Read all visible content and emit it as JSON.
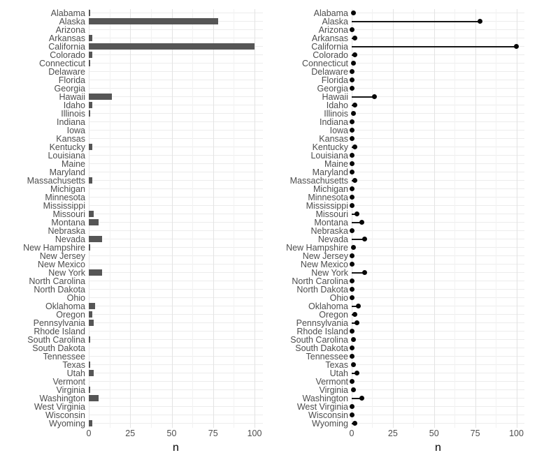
{
  "figure": {
    "background": "#ffffff",
    "axis_text_color": "#4d4d4d",
    "axis_title_color": "#000000",
    "grid_major_color": "#e3e3e3",
    "grid_minor_color": "#f2f2f2"
  },
  "chart_data": [
    {
      "type": "bar",
      "orientation": "horizontal",
      "title": "",
      "xlabel": "n",
      "ylabel": "",
      "xlim": [
        0,
        105
      ],
      "xticks": [
        0,
        25,
        50,
        75,
        100
      ],
      "xtick_labels": [
        "0",
        "25",
        "50",
        "75",
        "100"
      ],
      "grid": true,
      "legend": false,
      "bar_color": "#565656",
      "categories": [
        "Alabama",
        "Alaska",
        "Arizona",
        "Arkansas",
        "California",
        "Colorado",
        "Connecticut",
        "Delaware",
        "Florida",
        "Georgia",
        "Hawaii",
        "Idaho",
        "Illinois",
        "Indiana",
        "Iowa",
        "Kansas",
        "Kentucky",
        "Louisiana",
        "Maine",
        "Maryland",
        "Massachusetts",
        "Michigan",
        "Minnesota",
        "Mississippi",
        "Missouri",
        "Montana",
        "Nebraska",
        "Nevada",
        "New Hampshire",
        "New Jersey",
        "New Mexico",
        "New York",
        "North Carolina",
        "North Dakota",
        "Ohio",
        "Oklahoma",
        "Oregon",
        "Pennsylvania",
        "Rhode Island",
        "South Carolina",
        "South Dakota",
        "Tennessee",
        "Texas",
        "Utah",
        "Vermont",
        "Virginia",
        "Washington",
        "West Virginia",
        "Wisconsin",
        "Wyoming"
      ],
      "values": [
        1,
        78,
        0,
        2,
        100,
        2,
        1,
        0,
        0,
        0,
        14,
        2,
        1,
        0,
        0,
        0,
        2,
        0,
        0,
        0,
        2,
        0,
        0,
        0,
        3,
        6,
        0,
        8,
        1,
        0,
        0,
        8,
        0,
        0,
        0,
        4,
        2,
        3,
        0,
        1,
        0,
        0,
        1,
        3,
        0,
        1,
        6,
        0,
        0,
        2
      ]
    },
    {
      "type": "scatter",
      "style": "lollipop",
      "orientation": "horizontal",
      "title": "",
      "xlabel": "n",
      "ylabel": "",
      "xlim": [
        0,
        105
      ],
      "xticks": [
        0,
        25,
        50,
        75,
        100
      ],
      "xtick_labels": [
        "0",
        "25",
        "50",
        "75",
        "100"
      ],
      "grid": true,
      "legend": false,
      "point_color": "#070707",
      "stem_color": "#161616",
      "categories": [
        "Alabama",
        "Alaska",
        "Arizona",
        "Arkansas",
        "California",
        "Colorado",
        "Connecticut",
        "Delaware",
        "Florida",
        "Georgia",
        "Hawaii",
        "Idaho",
        "Illinois",
        "Indiana",
        "Iowa",
        "Kansas",
        "Kentucky",
        "Louisiana",
        "Maine",
        "Maryland",
        "Massachusetts",
        "Michigan",
        "Minnesota",
        "Mississippi",
        "Missouri",
        "Montana",
        "Nebraska",
        "Nevada",
        "New Hampshire",
        "New Jersey",
        "New Mexico",
        "New York",
        "North Carolina",
        "North Dakota",
        "Ohio",
        "Oklahoma",
        "Oregon",
        "Pennsylvania",
        "Rhode Island",
        "South Carolina",
        "South Dakota",
        "Tennessee",
        "Texas",
        "Utah",
        "Vermont",
        "Virginia",
        "Washington",
        "West Virginia",
        "Wisconsin",
        "Wyoming"
      ],
      "values": [
        1,
        78,
        0,
        2,
        100,
        2,
        1,
        0,
        0,
        0,
        14,
        2,
        1,
        0,
        0,
        0,
        2,
        0,
        0,
        0,
        2,
        0,
        0,
        0,
        3,
        6,
        0,
        8,
        1,
        0,
        0,
        8,
        0,
        0,
        0,
        4,
        2,
        3,
        0,
        1,
        0,
        0,
        1,
        3,
        0,
        1,
        6,
        0,
        0,
        2
      ]
    }
  ]
}
